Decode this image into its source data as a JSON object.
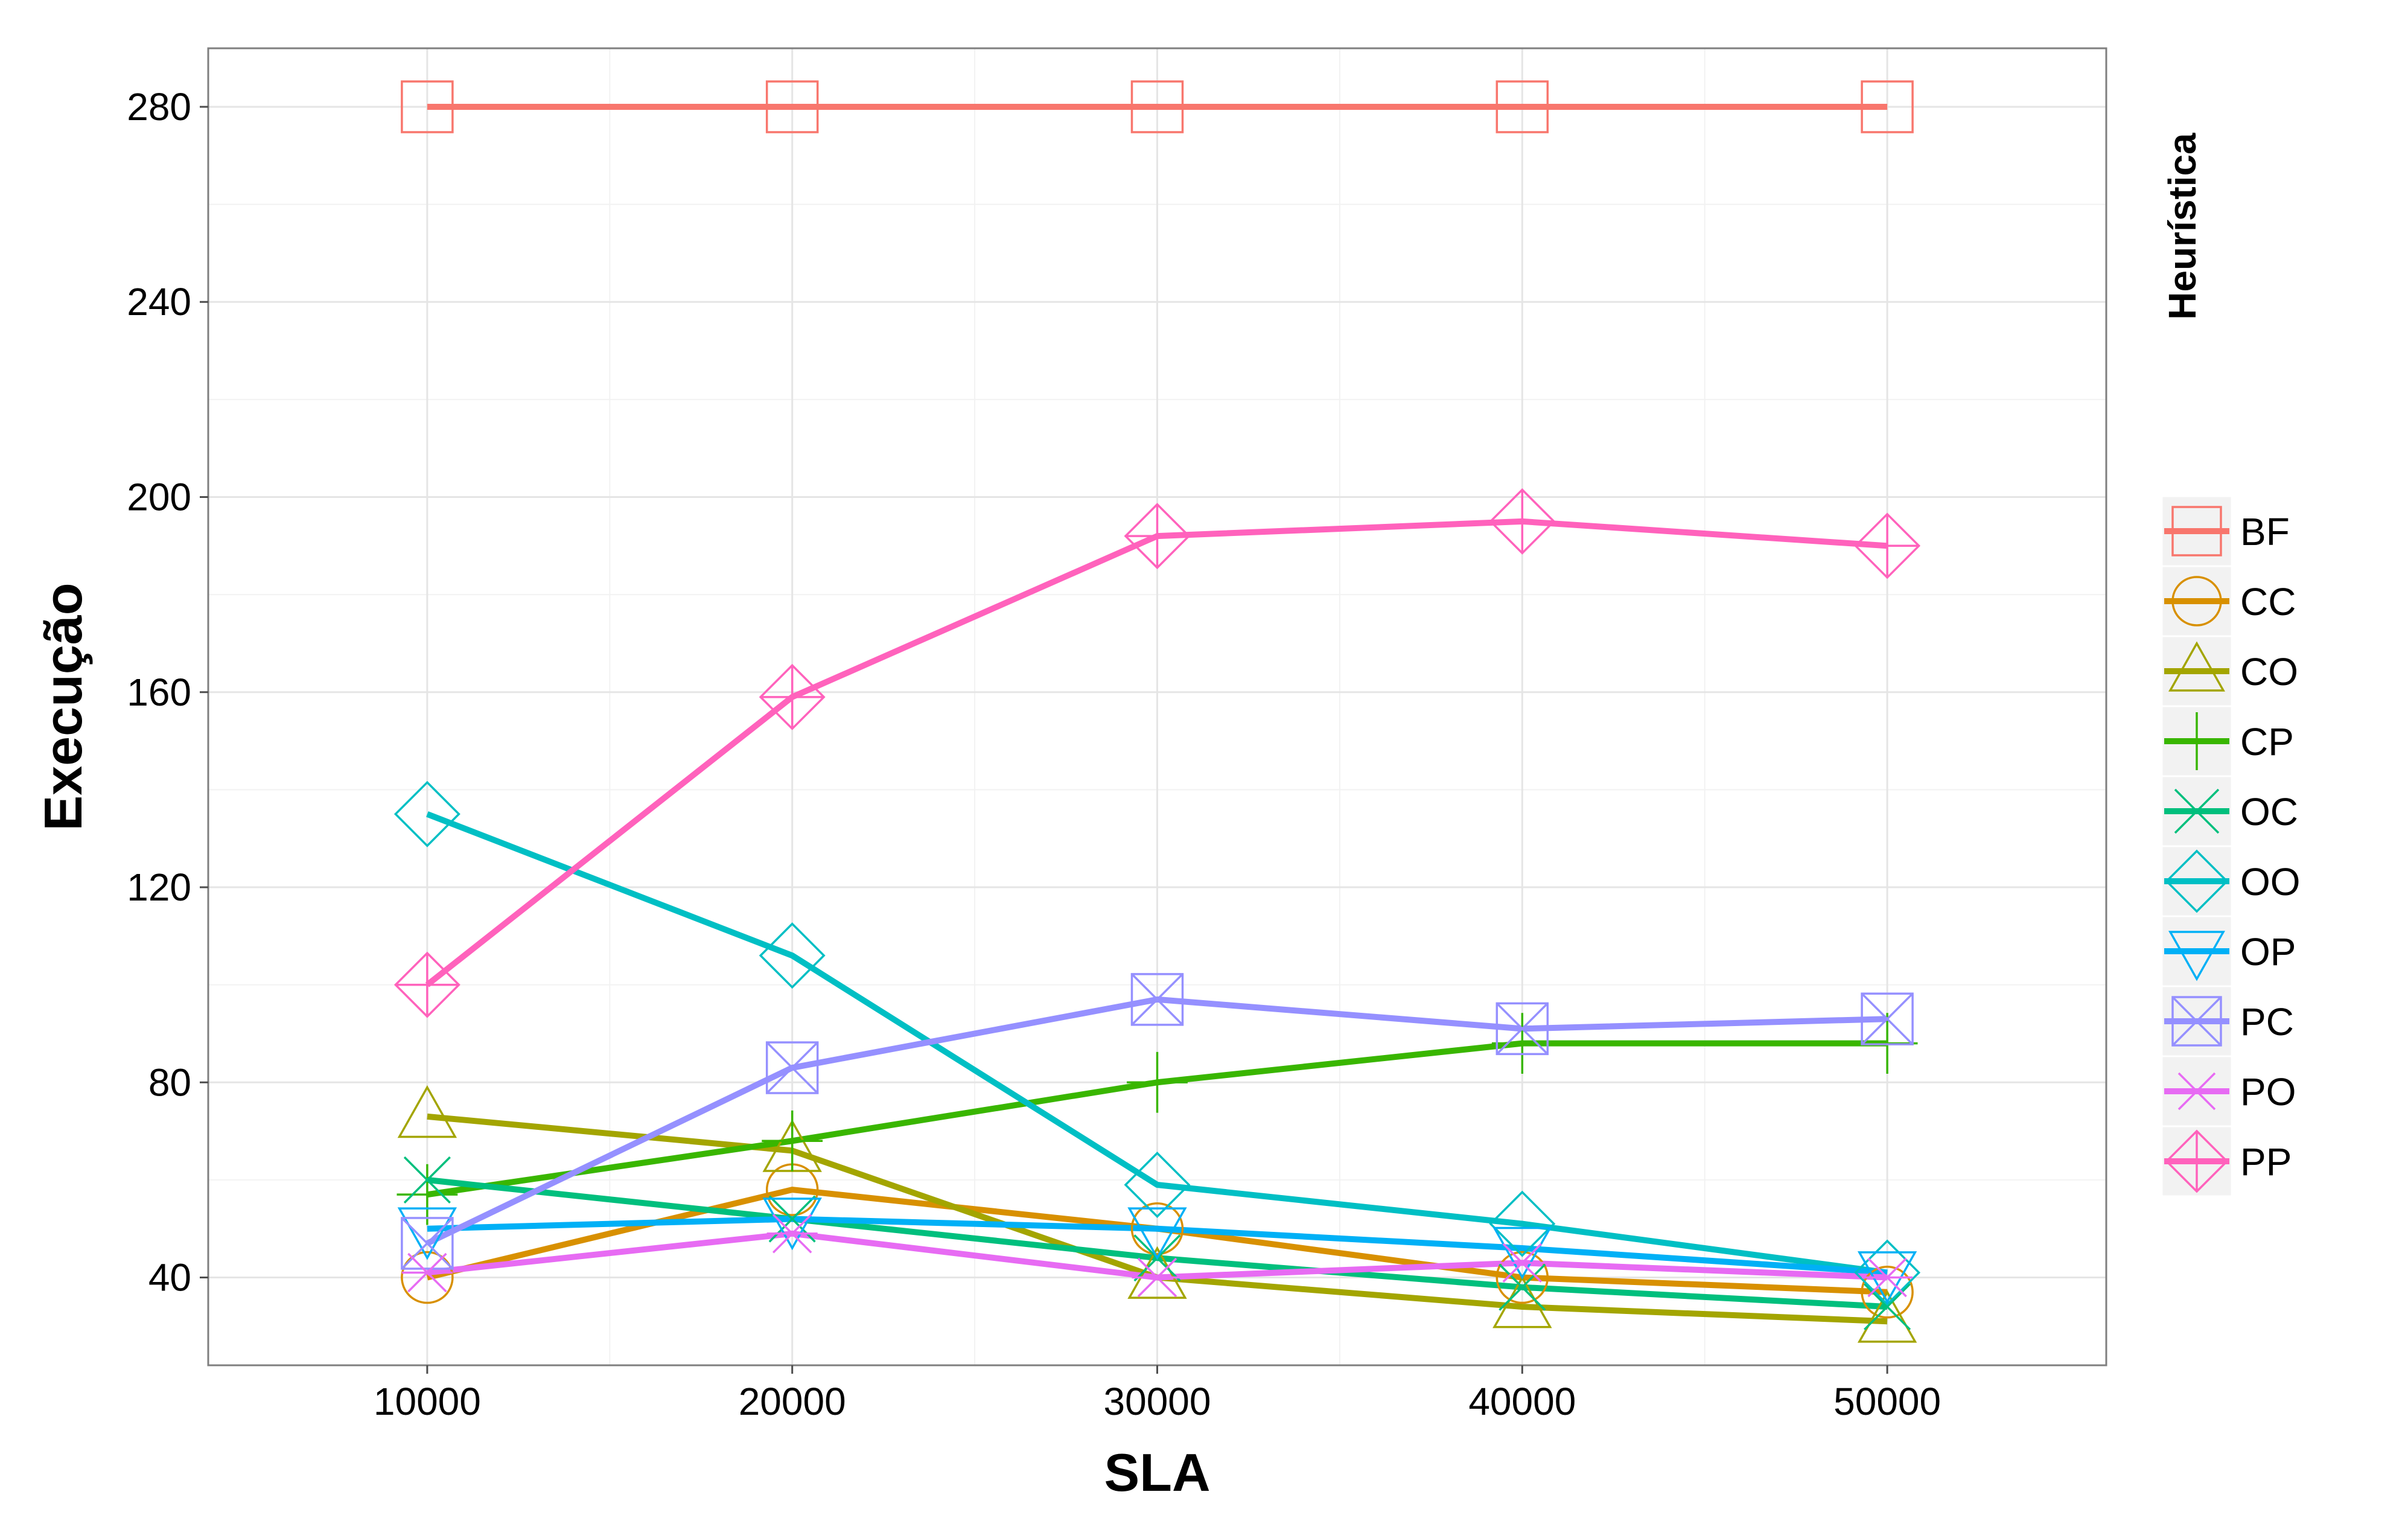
{
  "chart_data": {
    "type": "line",
    "title": "",
    "xlabel": "SLA",
    "ylabel": "Execução",
    "xlim": [
      4000,
      56000
    ],
    "ylim": [
      22,
      292
    ],
    "x_ticks": [
      10000,
      20000,
      30000,
      40000,
      50000
    ],
    "y_ticks": [
      40,
      80,
      120,
      160,
      200,
      240,
      280
    ],
    "grid": true,
    "legend": {
      "title": "Heurística",
      "placement": "right"
    },
    "x": [
      10000,
      20000,
      30000,
      40000,
      50000
    ],
    "series": [
      {
        "name": "BF",
        "color": "#F8766D",
        "marker": "square",
        "values": [
          280,
          280,
          280,
          280,
          280
        ]
      },
      {
        "name": "CC",
        "color": "#D89000",
        "marker": "circle",
        "values": [
          40,
          58,
          50,
          40,
          37
        ]
      },
      {
        "name": "CO",
        "color": "#A3A500",
        "marker": "triangle-up",
        "values": [
          73,
          66,
          40,
          34,
          31
        ]
      },
      {
        "name": "CP",
        "color": "#39B600",
        "marker": "plus",
        "values": [
          57,
          68,
          80,
          88,
          88
        ]
      },
      {
        "name": "OC",
        "color": "#00BF7D",
        "marker": "cross",
        "values": [
          60,
          52,
          44,
          38,
          34
        ]
      },
      {
        "name": "OO",
        "color": "#00BFC4",
        "marker": "diamond",
        "values": [
          135,
          106,
          59,
          51,
          41
        ]
      },
      {
        "name": "OP",
        "color": "#00B0F6",
        "marker": "triangle-down",
        "values": [
          50,
          52,
          50,
          46,
          41
        ]
      },
      {
        "name": "PC",
        "color": "#9590FF",
        "marker": "square-cross",
        "values": [
          47,
          83,
          97,
          91,
          93
        ]
      },
      {
        "name": "PO",
        "color": "#E76BF3",
        "marker": "asterisk",
        "values": [
          41,
          49,
          40,
          43,
          40
        ]
      },
      {
        "name": "PP",
        "color": "#FF62BC",
        "marker": "diamond-plus",
        "values": [
          100,
          159,
          192,
          195,
          190
        ]
      }
    ]
  }
}
